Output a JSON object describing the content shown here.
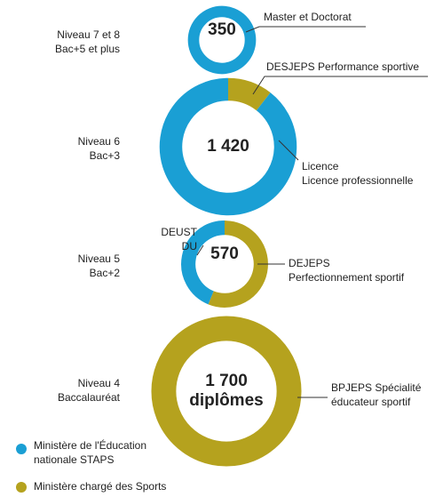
{
  "chart_data": {
    "type": "donut",
    "series": [
      {
        "name": [
          "Ministère de l'Éducation",
          "nationale STAPS"
        ],
        "color": "#1a9fd4"
      },
      {
        "name": [
          "Ministère chargé des Sports"
        ],
        "color": "#b5a21e"
      }
    ],
    "groups": [
      {
        "label": [
          "Niveau 7 et 8",
          "Bac+5 et plus"
        ],
        "total": 350,
        "center": [
          "350"
        ],
        "segments": [
          {
            "name": [
              "Master et Doctorat"
            ],
            "value": 350,
            "color": "#1a9fd4"
          }
        ]
      },
      {
        "label": [
          "Niveau 6",
          "Bac+3"
        ],
        "total": {
          "value": 1420,
          "label": "1 420"
        },
        "center": [],
        "segments": [
          {
            "name": [
              "DESJEPS Performance sportive"
            ],
            "value": 150,
            "color": "#b5a21e"
          },
          {
            "name": [
              "Licence",
              "Licence professionnelle"
            ],
            "value": 1270,
            "color": "#1a9fd4"
          }
        ]
      },
      {
        "label": [
          "Niveau 5",
          "Bac+2"
        ],
        "total": 570,
        "center": [
          "570"
        ],
        "segments": [
          {
            "name": [
              "DEJEPS",
              "Perfectionnement sportif"
            ],
            "value": 320,
            "color": "#b5a21e"
          },
          {
            "name": [
              "DEUST",
              "DU"
            ],
            "value": 250,
            "color": "#1a9fd4"
          }
        ]
      },
      {
        "label": [
          "Niveau 4",
          "Baccalauréat"
        ],
        "total": {
          "value": 1700,
          "label": "1 700"
        },
        "center": [
          "diplômes"
        ],
        "segments": [
          {
            "name": [
              "BPJEPS Spécialité",
              "éducateur sportif"
            ],
            "value": 1700,
            "color": "#b5a21e"
          }
        ]
      }
    ]
  }
}
